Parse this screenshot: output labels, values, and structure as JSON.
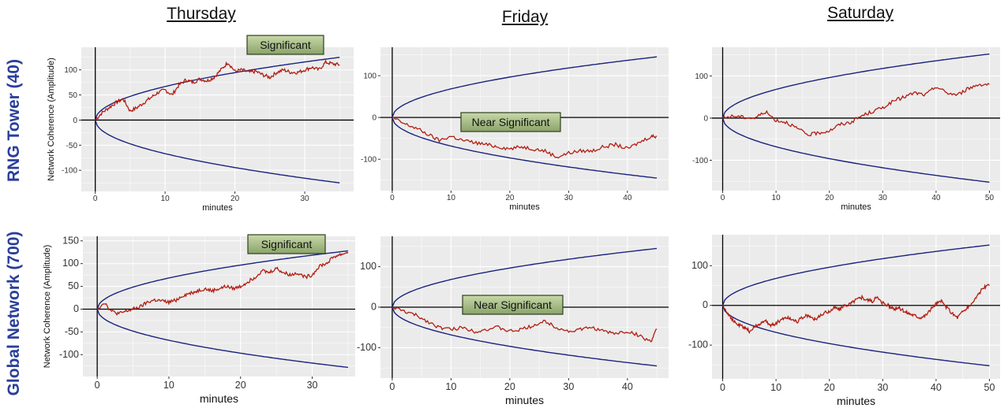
{
  "columns": [
    "Thursday",
    "Friday",
    "Saturday"
  ],
  "rows": [
    "RNG Tower (40)",
    "Global Network (700)"
  ],
  "colors": {
    "background": "#ebebeb",
    "grid": "#ffffff",
    "envelope": "#1a237e",
    "walk": "#b21d12",
    "axis": "#000000",
    "label_box": "#8aa36a",
    "row_label": "#2a3f9a"
  },
  "chart_data": [
    {
      "type": "line",
      "day": "Thursday",
      "row": "RNG Tower (40)",
      "ylabel": "Network Coherence (Amplitude)",
      "xlabel": "minutes",
      "xlim": [
        -2,
        37
      ],
      "ylim": [
        -142,
        145
      ],
      "xticks": [
        0,
        10,
        20,
        30
      ],
      "yticks": [
        -100,
        -50,
        0,
        50,
        100
      ],
      "envelope_end": [
        35,
        125
      ],
      "annotation": "Significant",
      "series": [
        {
          "x": [
            0,
            1,
            2,
            3,
            4,
            5,
            6,
            7,
            8,
            9,
            10,
            11,
            12,
            13,
            14,
            15,
            16,
            17,
            18,
            19,
            20,
            21,
            22,
            23,
            24,
            25,
            26,
            27,
            28,
            29,
            30,
            31,
            32,
            33,
            34,
            35
          ],
          "values": [
            0,
            15,
            25,
            35,
            42,
            18,
            25,
            35,
            45,
            55,
            60,
            50,
            70,
            80,
            75,
            82,
            78,
            85,
            100,
            115,
            97,
            100,
            95,
            97,
            90,
            85,
            95,
            100,
            95,
            95,
            100,
            105,
            100,
            115,
            112,
            110
          ]
        }
      ]
    },
    {
      "type": "line",
      "day": "Friday",
      "row": "RNG Tower (40)",
      "ylabel": "",
      "xlabel": "minutes",
      "xlim": [
        -2,
        47
      ],
      "ylim": [
        -175,
        168
      ],
      "xticks": [
        0,
        10,
        20,
        30,
        40
      ],
      "yticks": [
        -100,
        0,
        100
      ],
      "envelope_end": [
        45,
        145
      ],
      "annotation": "Near Significant",
      "series": [
        {
          "x": [
            0,
            2,
            4,
            6,
            8,
            10,
            12,
            14,
            16,
            18,
            20,
            22,
            24,
            26,
            28,
            30,
            32,
            34,
            36,
            38,
            40,
            42,
            44,
            45
          ],
          "values": [
            0,
            -15,
            -25,
            -40,
            -55,
            -45,
            -55,
            -60,
            -65,
            -70,
            -75,
            -70,
            -75,
            -80,
            -95,
            -85,
            -80,
            -80,
            -70,
            -65,
            -75,
            -60,
            -45,
            -45
          ]
        }
      ]
    },
    {
      "type": "line",
      "day": "Saturday",
      "row": "RNG Tower (40)",
      "ylabel": "",
      "xlabel": "minutes",
      "xlim": [
        -2,
        52
      ],
      "ylim": [
        -172,
        168
      ],
      "xticks": [
        0,
        10,
        20,
        30,
        40,
        50
      ],
      "yticks": [
        -100,
        0,
        100
      ],
      "envelope_end": [
        50,
        152
      ],
      "annotation": "",
      "series": [
        {
          "x": [
            0,
            2,
            4,
            6,
            8,
            10,
            12,
            14,
            16,
            18,
            20,
            22,
            24,
            26,
            28,
            30,
            32,
            34,
            36,
            38,
            40,
            42,
            44,
            46,
            48,
            50
          ],
          "values": [
            0,
            5,
            2,
            0,
            15,
            -5,
            -10,
            -25,
            -40,
            -35,
            -30,
            -15,
            -10,
            5,
            15,
            25,
            40,
            50,
            60,
            55,
            75,
            60,
            55,
            70,
            80,
            80
          ]
        }
      ]
    },
    {
      "type": "line",
      "day": "Thursday",
      "row": "Global Network (700)",
      "ylabel": "Network Coherence (Amplitude)",
      "xlabel": "minutes",
      "xlim": [
        -2,
        36
      ],
      "ylim": [
        -148,
        160
      ],
      "xticks": [
        0,
        10,
        20,
        30
      ],
      "yticks": [
        -100,
        -50,
        0,
        50,
        100,
        150
      ],
      "envelope_end": [
        35,
        128
      ],
      "annotation": "Significant",
      "series": [
        {
          "x": [
            0,
            1,
            2,
            3,
            4,
            5,
            6,
            7,
            8,
            9,
            10,
            11,
            12,
            13,
            14,
            15,
            16,
            17,
            18,
            19,
            20,
            21,
            22,
            23,
            24,
            25,
            26,
            27,
            28,
            29,
            30,
            31,
            32,
            33,
            34,
            35
          ],
          "values": [
            0,
            15,
            -5,
            -10,
            -5,
            0,
            5,
            15,
            20,
            18,
            15,
            20,
            30,
            35,
            40,
            45,
            40,
            45,
            50,
            45,
            50,
            60,
            70,
            85,
            80,
            90,
            80,
            75,
            80,
            70,
            75,
            95,
            100,
            115,
            120,
            125
          ]
        }
      ]
    },
    {
      "type": "line",
      "day": "Friday",
      "row": "Global Network (700)",
      "ylabel": "",
      "xlabel": "minutes",
      "xlim": [
        -2,
        47
      ],
      "ylim": [
        -175,
        175
      ],
      "xticks": [
        0,
        10,
        20,
        30,
        40
      ],
      "yticks": [
        -100,
        0,
        100
      ],
      "envelope_end": [
        45,
        145
      ],
      "annotation": "Near Significant",
      "series": [
        {
          "x": [
            0,
            2,
            4,
            6,
            8,
            10,
            12,
            14,
            16,
            18,
            20,
            22,
            24,
            26,
            28,
            30,
            32,
            34,
            36,
            38,
            40,
            42,
            44,
            45
          ],
          "values": [
            0,
            -10,
            -20,
            -35,
            -50,
            -55,
            -50,
            -60,
            -55,
            -50,
            -60,
            -55,
            -45,
            -35,
            -50,
            -60,
            -55,
            -50,
            -60,
            -65,
            -60,
            -70,
            -85,
            -55
          ]
        }
      ]
    },
    {
      "type": "line",
      "day": "Saturday",
      "row": "Global Network (700)",
      "ylabel": "",
      "xlabel": "minutes",
      "xlim": [
        -2,
        52
      ],
      "ylim": [
        -185,
        178
      ],
      "xticks": [
        0,
        10,
        20,
        30,
        40,
        50
      ],
      "yticks": [
        -100,
        0,
        100
      ],
      "envelope_end": [
        50,
        152
      ],
      "annotation": "",
      "series": [
        {
          "x": [
            0,
            1,
            2,
            3,
            4,
            5,
            6,
            7,
            8,
            9,
            10,
            11,
            12,
            13,
            14,
            15,
            16,
            17,
            18,
            19,
            20,
            21,
            22,
            23,
            24,
            25,
            26,
            27,
            28,
            29,
            30,
            31,
            32,
            33,
            34,
            35,
            36,
            37,
            38,
            39,
            40,
            41,
            42,
            43,
            44,
            45,
            46,
            47,
            48,
            49,
            50
          ],
          "values": [
            0,
            -20,
            -40,
            -50,
            -55,
            -65,
            -55,
            -45,
            -40,
            -50,
            -45,
            -35,
            -30,
            -35,
            -40,
            -30,
            -25,
            -35,
            -30,
            -20,
            -15,
            -5,
            -10,
            0,
            5,
            15,
            20,
            15,
            10,
            20,
            5,
            0,
            -10,
            -5,
            -15,
            -20,
            -25,
            -30,
            -25,
            -10,
            5,
            10,
            -5,
            -20,
            -30,
            -15,
            -5,
            10,
            30,
            45,
            50
          ]
        }
      ]
    }
  ]
}
